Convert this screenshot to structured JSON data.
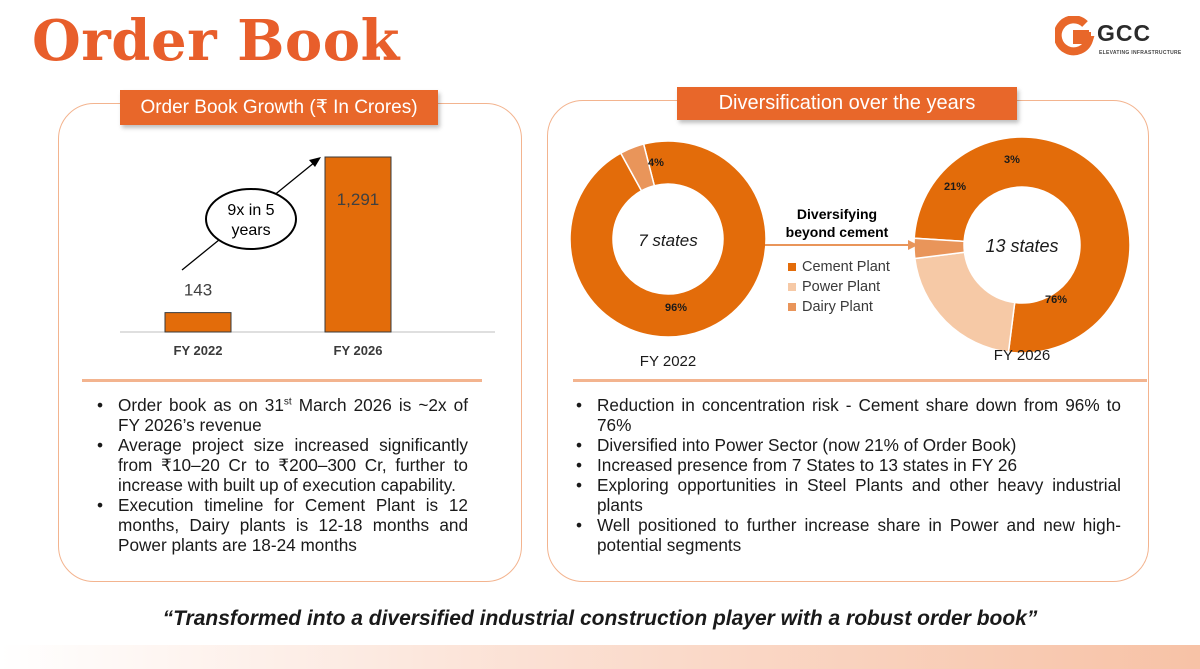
{
  "page": {
    "title": "Order Book",
    "logo": {
      "name": "GCC",
      "tagline": "ELEVATING INFRASTRUCTURE"
    },
    "tagline": "“Transformed into a diversified industrial construction player with a robust order book”"
  },
  "left": {
    "header": "Order Book Growth (₹ In Crores)",
    "growth_label_line1": "9x in 5",
    "growth_label_line2": "years",
    "bullets": [
      {
        "pre": "Order book as on 31",
        "sup": "st",
        "post": " March 2026 is ~2x of FY 2026’s revenue"
      },
      {
        "pre": "Average project size increased significantly from ₹10–20 Cr to ₹200–300 Cr, further to increase with built up of execution capability.",
        "sup": "",
        "post": ""
      },
      {
        "pre": "Execution timeline for Cement Plant is 12 months, Dairy plants is 12-18 months and Power plants are 18-24 months",
        "sup": "",
        "post": ""
      }
    ]
  },
  "right": {
    "header": "Diversification over the years",
    "arrow_label_line1": "Diversifying",
    "arrow_label_line2": "beyond cement",
    "legend": [
      "Cement Plant",
      "Power Plant",
      "Dairy Plant"
    ],
    "bullets": [
      "Reduction in concentration risk - Cement share down from 96% to 76%",
      "Diversified into Power Sector (now 21% of Order Book)",
      "Increased presence from 7 States to 13 states in FY 26",
      "Exploring opportunities in Steel Plants and other heavy industrial plants",
      "Well positioned to further increase share in Power and new high-potential segments"
    ]
  },
  "colors": {
    "accent": "#e8672a",
    "cement": "#e36c0a",
    "power": "#f6c9a6",
    "dairy": "#e9955a",
    "panel_border": "#f3b48f"
  },
  "chart_data": [
    {
      "type": "bar",
      "title": "Order Book Growth (₹ In Crores)",
      "categories": [
        "FY 2022",
        "FY 2026"
      ],
      "values": [
        143,
        1291
      ],
      "value_labels": [
        "143",
        "1,291"
      ],
      "ylim": [
        0,
        1291
      ]
    },
    {
      "type": "pie",
      "variant": "donut",
      "label": "FY 2022",
      "center_label": "7 states",
      "slices": [
        {
          "name": "Cement Plant",
          "value": 96,
          "label": "96%"
        },
        {
          "name": "Dairy Plant",
          "value": 4,
          "label": "4%"
        }
      ]
    },
    {
      "type": "pie",
      "variant": "donut",
      "label": "FY 2026",
      "center_label": "13 states",
      "slices": [
        {
          "name": "Cement Plant",
          "value": 76,
          "label": "76%"
        },
        {
          "name": "Power Plant",
          "value": 21,
          "label": "21%"
        },
        {
          "name": "Dairy Plant",
          "value": 3,
          "label": "3%"
        }
      ]
    }
  ]
}
